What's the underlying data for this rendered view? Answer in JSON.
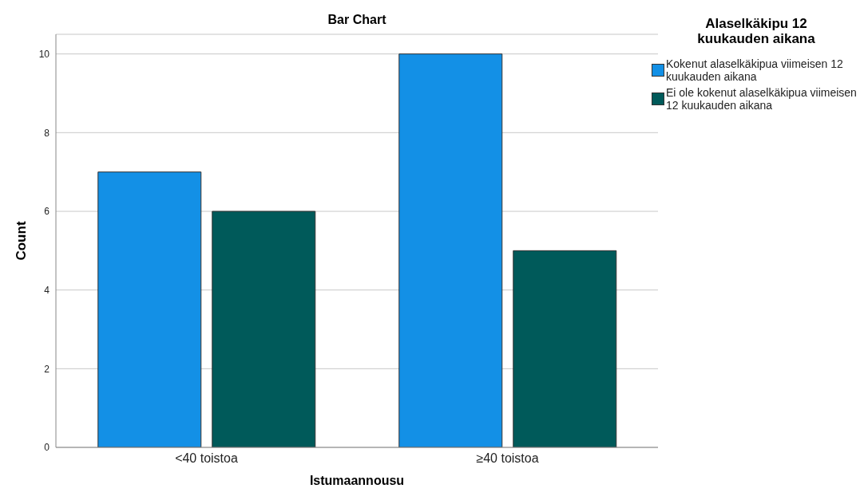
{
  "chart_data": {
    "type": "bar",
    "title": "Bar Chart",
    "xlabel": "Istumaannousu",
    "ylabel": "Count",
    "legend_title": "Alaselkäkipu 12 kuukauden aikana",
    "categories": [
      "<40 toistoa",
      "≥40 toistoa"
    ],
    "series": [
      {
        "name": "Kokenut alaselkäkipua viimeisen 12 kuukauden aikana",
        "color": "#1390e6",
        "values": [
          7,
          10
        ]
      },
      {
        "name": "Ei ole kokenut alaselkäkipua viimeisen 12 kuukauden aikana",
        "color": "#005a5a",
        "values": [
          6,
          5
        ]
      }
    ],
    "ylim": [
      0,
      10.5
    ],
    "yticks": [
      0,
      2,
      4,
      6,
      8,
      10
    ],
    "grid": "y",
    "legend": "top right"
  }
}
